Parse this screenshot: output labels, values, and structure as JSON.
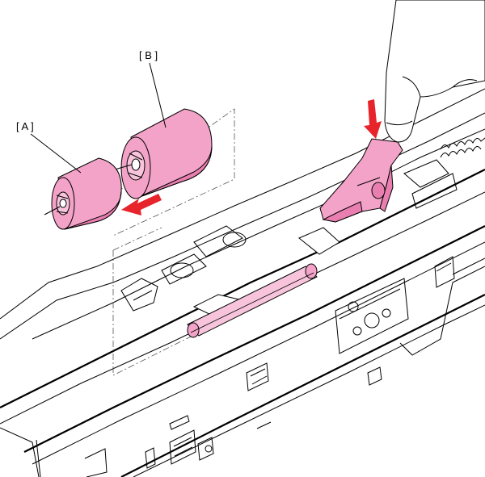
{
  "labels": {
    "roller_a": "[ A ]",
    "roller_b": "[ B ]"
  },
  "colors": {
    "part_highlight": "#f3a3c8",
    "arrow": "#e8242b",
    "line": "#000000"
  }
}
